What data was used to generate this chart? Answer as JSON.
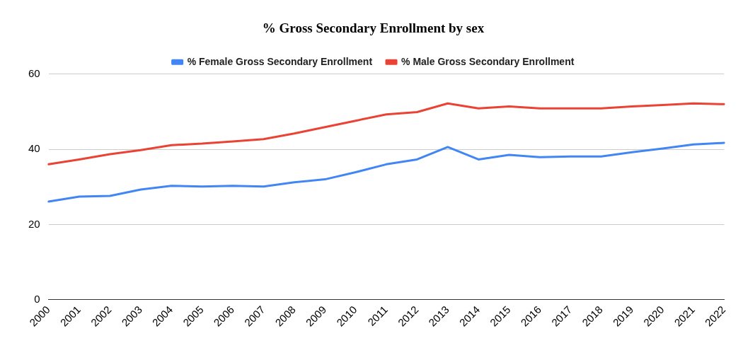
{
  "chart_data": {
    "type": "line",
    "title": "% Gross Secondary Enrollment by sex",
    "categories": [
      "2000",
      "2001",
      "2002",
      "2003",
      "2004",
      "2005",
      "2006",
      "2007",
      "2008",
      "2009",
      "2010",
      "2011",
      "2012",
      "2013",
      "2014",
      "2015",
      "2016",
      "2017",
      "2018",
      "2019",
      "2020",
      "2021",
      "2022"
    ],
    "series": [
      {
        "name": "% Female Gross Secondary Enrollment",
        "color": "#4285f4",
        "values": [
          26.1,
          27.4,
          27.6,
          29.3,
          30.3,
          30.1,
          30.3,
          30.1,
          31.2,
          32.0,
          33.9,
          36.0,
          37.3,
          40.6,
          37.3,
          38.5,
          37.9,
          38.1,
          38.1,
          39.2,
          40.2,
          41.3,
          41.7
        ]
      },
      {
        "name": "% Male Gross Secondary Enrollment",
        "color": "#ea4335",
        "values": [
          36.0,
          37.3,
          38.7,
          39.8,
          41.1,
          41.5,
          42.1,
          42.7,
          44.2,
          45.9,
          47.6,
          49.3,
          49.9,
          52.2,
          50.9,
          51.4,
          50.9,
          50.9,
          50.9,
          51.4,
          51.8,
          52.2,
          52.0
        ]
      }
    ],
    "ylim": [
      0,
      60
    ],
    "yticks": [
      0,
      20,
      40,
      60
    ],
    "grid": "y",
    "legend": "top",
    "marker": "none",
    "line_style": "solid"
  }
}
